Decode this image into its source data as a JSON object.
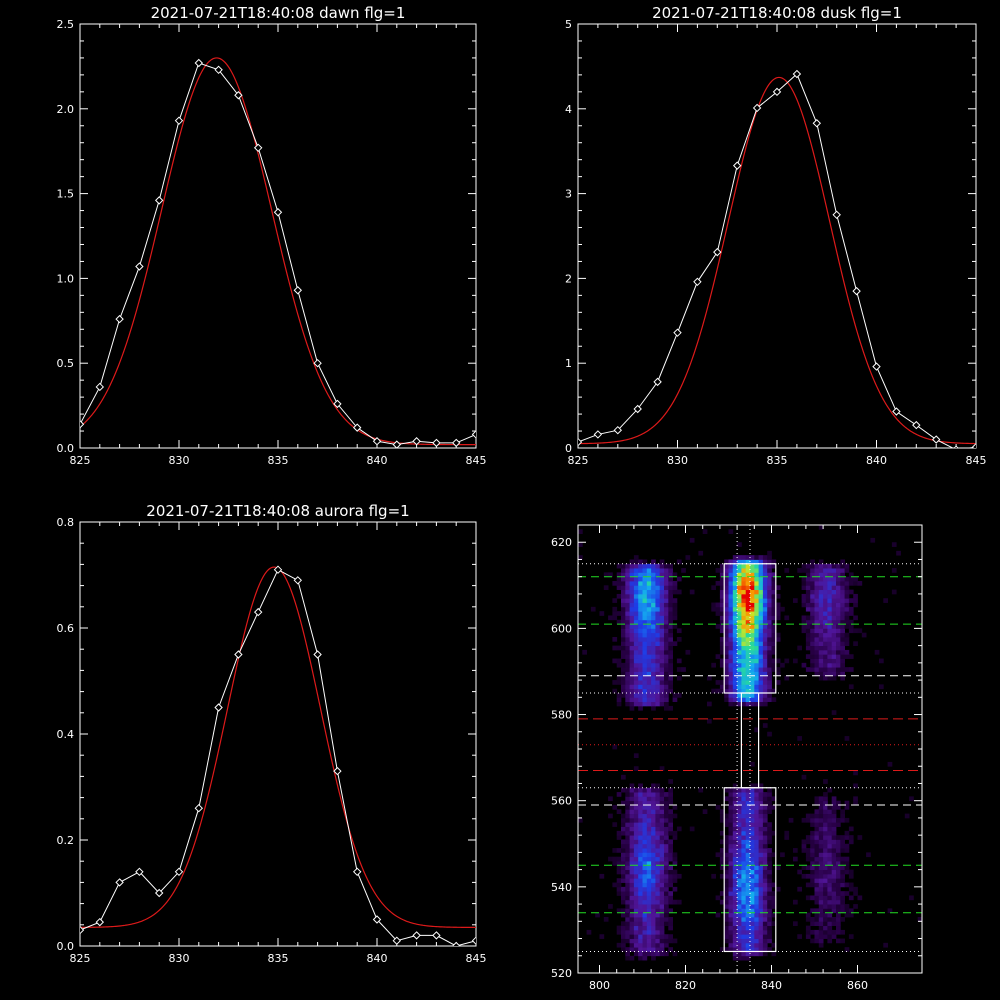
{
  "chart_data": [
    {
      "type": "line",
      "title": "2021-07-21T18:40:08 dawn flg=1",
      "xlim": [
        825,
        845
      ],
      "ylim": [
        0,
        2.5
      ],
      "xticks": [
        825,
        830,
        835,
        840,
        845
      ],
      "yticks": [
        0.0,
        0.5,
        1.0,
        1.5,
        2.0,
        2.5
      ],
      "ytick_labels": [
        "0.0",
        "0.5",
        "1.0",
        "1.5",
        "2.0",
        "2.5"
      ],
      "series": [
        {
          "role": "data",
          "color": "#ffffff",
          "marker": "diamond",
          "x": [
            825,
            826,
            827,
            828,
            829,
            830,
            831,
            832,
            833,
            834,
            835,
            836,
            837,
            838,
            839,
            840,
            841,
            842,
            843,
            844,
            845
          ],
          "y": [
            0.14,
            0.36,
            0.76,
            1.07,
            1.46,
            1.93,
            2.27,
            2.23,
            2.08,
            1.77,
            1.39,
            0.93,
            0.5,
            0.26,
            0.12,
            0.04,
            0.02,
            0.04,
            0.03,
            0.03,
            0.08
          ]
        },
        {
          "role": "fit",
          "color": "#dd1a1a",
          "gaussian": {
            "amp": 2.28,
            "center": 831.9,
            "sigma": 2.78,
            "offset": 0.02
          }
        }
      ]
    },
    {
      "type": "line",
      "title": "2021-07-21T18:40:08 dusk flg=1",
      "xlim": [
        825,
        845
      ],
      "ylim": [
        0,
        5
      ],
      "xticks": [
        825,
        830,
        835,
        840,
        845
      ],
      "yticks": [
        0,
        1,
        2,
        3,
        4,
        5
      ],
      "ytick_labels": [
        "0",
        "1",
        "2",
        "3",
        "4",
        "5"
      ],
      "series": [
        {
          "role": "data",
          "color": "#ffffff",
          "marker": "diamond",
          "x": [
            825,
            826,
            827,
            828,
            829,
            830,
            831,
            832,
            833,
            834,
            835,
            836,
            837,
            838,
            839,
            840,
            841,
            842,
            843,
            844,
            845
          ],
          "y": [
            0.07,
            0.16,
            0.21,
            0.46,
            0.78,
            1.36,
            1.96,
            2.31,
            3.33,
            4.01,
            4.2,
            4.41,
            3.83,
            2.75,
            1.85,
            0.96,
            0.43,
            0.27,
            0.1,
            -0.02,
            0.01
          ]
        },
        {
          "role": "fit",
          "color": "#dd1a1a",
          "gaussian": {
            "amp": 4.32,
            "center": 835.1,
            "sigma": 2.55,
            "offset": 0.05
          }
        }
      ]
    },
    {
      "type": "line",
      "title": "2021-07-21T18:40:08 aurora flg=1",
      "xlim": [
        825,
        845
      ],
      "ylim": [
        0,
        0.8
      ],
      "xticks": [
        825,
        830,
        835,
        840,
        845
      ],
      "yticks": [
        0.0,
        0.2,
        0.4,
        0.6,
        0.8
      ],
      "ytick_labels": [
        "0.0",
        "0.2",
        "0.4",
        "0.6",
        "0.8"
      ],
      "series": [
        {
          "role": "data",
          "color": "#ffffff",
          "marker": "diamond",
          "x": [
            825,
            826,
            827,
            828,
            829,
            830,
            831,
            832,
            833,
            834,
            835,
            836,
            837,
            838,
            839,
            840,
            841,
            842,
            843,
            844,
            845
          ],
          "y": [
            0.03,
            0.045,
            0.12,
            0.14,
            0.1,
            0.14,
            0.26,
            0.45,
            0.55,
            0.63,
            0.71,
            0.69,
            0.55,
            0.33,
            0.14,
            0.05,
            0.01,
            0.02,
            0.02,
            0.0,
            0.01
          ]
        },
        {
          "role": "fit",
          "color": "#dd1a1a",
          "gaussian": {
            "amp": 0.68,
            "center": 834.8,
            "sigma": 2.35,
            "offset": 0.035
          }
        }
      ]
    },
    {
      "type": "heatmap",
      "xlim": [
        795,
        875
      ],
      "ylim": [
        520,
        624
      ],
      "xticks": [
        800,
        820,
        840,
        860
      ],
      "yticks": [
        520,
        540,
        560,
        580,
        600,
        620
      ],
      "bands": [
        {
          "center": 811,
          "width": 3.4,
          "segments": [
            {
              "from": 583,
              "to": 614,
              "strength": 0.55,
              "peak": 608
            },
            {
              "from": 525,
              "to": 562,
              "strength": 0.42,
              "peak": 545
            }
          ]
        },
        {
          "center": 834.5,
          "width": 3.0,
          "segments": [
            {
              "from": 584,
              "to": 615,
              "strength": 1.0,
              "peak": 607
            },
            {
              "from": 525,
              "to": 562,
              "strength": 0.52,
              "peak": 540
            }
          ]
        },
        {
          "center": 853,
          "width": 3.4,
          "segments": [
            {
              "from": 590,
              "to": 614,
              "strength": 0.3,
              "peak": 607
            },
            {
              "from": 528,
              "to": 560,
              "strength": 0.18,
              "peak": 545
            }
          ]
        }
      ],
      "overlays": {
        "box_top": {
          "x": [
            829,
            841
          ],
          "y": [
            585,
            615
          ]
        },
        "box_bottom": {
          "x": [
            829,
            841
          ],
          "y": [
            525,
            563
          ]
        },
        "box_connector": {
          "x": [
            833,
            837
          ],
          "y": [
            563,
            585
          ]
        },
        "vlines_dotted": [
          832,
          835
        ],
        "green_dashed": [
          612,
          601,
          545,
          534
        ],
        "white_dashed": [
          589,
          559
        ],
        "red_dashed": [
          579,
          567
        ],
        "white_dotted": [
          615,
          585,
          563,
          525
        ],
        "red_dotted": [
          573
        ]
      }
    }
  ]
}
